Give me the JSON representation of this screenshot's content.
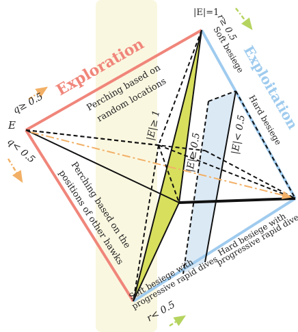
{
  "colors": {
    "exploration": "#f0857a",
    "exploitation": "#9fcbee",
    "arrow": "#f2b066",
    "arrow_green": "#b5d45f",
    "shade_yellow": "#d7df5d",
    "shade_blue": "#dbe9f5",
    "watermark": "#f7f1c8",
    "line": "#111111"
  },
  "labels": {
    "exploration": "Exploration",
    "exploitation": "Exploitation",
    "e_vertex": "E",
    "top_value": "|E|=1",
    "q_ge": "q≥ 0.5",
    "q_lt": "q< 0.5",
    "r_ge": "r≥ 0.5",
    "r_lt": "r< 0.5",
    "random_line1": "Perching based on",
    "random_line2": "random locations",
    "hawks_line1": "Perching based on the",
    "hawks_line2": "positions of other hawks",
    "soft_besiege": "Soft besiege",
    "hard_besiege": "Hard besiege",
    "e_ge_1": "|E|≥ 1",
    "e_ge_05": "|E|≥ 0.5",
    "e_lt_05": "|E|< 0.5",
    "soft_dives_line1": "Soft besiege with",
    "soft_dives_line2": "progressive rapid dives",
    "hard_dives_line1": "Hard besiege with",
    "hard_dives_line2": "progressive rapid dives"
  }
}
